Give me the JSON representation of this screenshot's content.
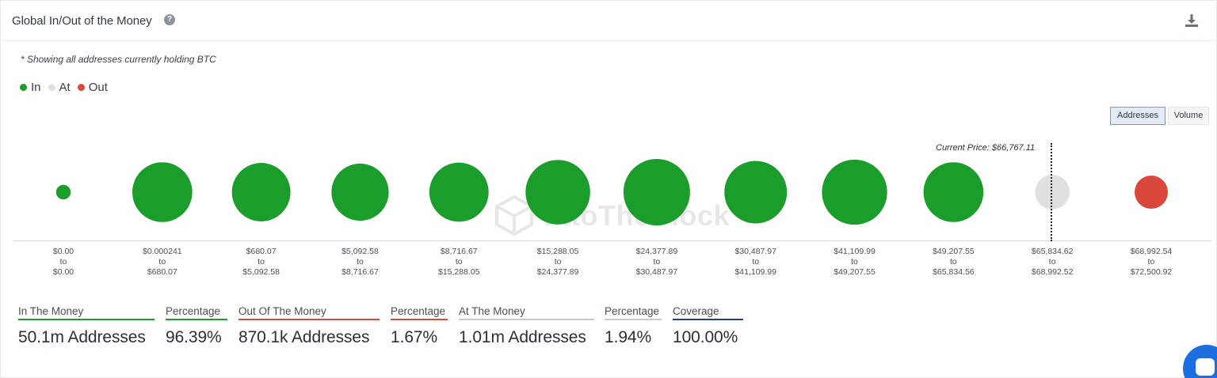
{
  "header": {
    "title": "Global In/Out of the Money",
    "help_icon": "question-circle-icon",
    "download_icon": "download-icon"
  },
  "note": "* Showing all addresses currently holding BTC",
  "legend": [
    {
      "label": "In",
      "color": "#1a9d2a"
    },
    {
      "label": "At",
      "color": "#e0e0e0"
    },
    {
      "label": "Out",
      "color": "#d9483b"
    }
  ],
  "toggles": {
    "addresses": "Addresses",
    "volume": "Volume",
    "selected": "Addresses"
  },
  "watermark": "IntoTheBlock",
  "current_price": {
    "label": "Current Price: $66,767.11"
  },
  "chart_data": {
    "type": "bubble",
    "legend_position": "top-left",
    "metric": "Addresses",
    "current_price": 66767.11,
    "buckets": [
      {
        "from": "$0.00",
        "to": "$0.00",
        "status": "In",
        "relative_size": 0.22
      },
      {
        "from": "$0.000241",
        "to": "$680.07",
        "status": "In",
        "relative_size": 0.9
      },
      {
        "from": "$680.07",
        "to": "$5,092.58",
        "status": "In",
        "relative_size": 0.88
      },
      {
        "from": "$5,092.58",
        "to": "$8,716.67",
        "status": "In",
        "relative_size": 0.86
      },
      {
        "from": "$8,716.67",
        "to": "$15,288.05",
        "status": "In",
        "relative_size": 0.89
      },
      {
        "from": "$15,288.05",
        "to": "$24,377.89",
        "status": "In",
        "relative_size": 0.97
      },
      {
        "from": "$24,377.89",
        "to": "$30,487.97",
        "status": "In",
        "relative_size": 1.0
      },
      {
        "from": "$30,487.97",
        "to": "$41,109.99",
        "status": "In",
        "relative_size": 0.94
      },
      {
        "from": "$41,109.99",
        "to": "$49,207.55",
        "status": "In",
        "relative_size": 0.98
      },
      {
        "from": "$49,207.55",
        "to": "$65,834.56",
        "status": "In",
        "relative_size": 0.9
      },
      {
        "from": "$65,834.62",
        "to": "$68,992.52",
        "status": "At",
        "relative_size": 0.52
      },
      {
        "from": "$68,992.54",
        "to": "$72,500.92",
        "status": "Out",
        "relative_size": 0.5
      }
    ],
    "connector": "to"
  },
  "stats": [
    {
      "label": "In The Money",
      "value": "50.1m Addresses",
      "color": "#1a9d2a"
    },
    {
      "label": "Percentage",
      "value": "96.39%",
      "color": "#1a9d2a"
    },
    {
      "label": "Out Of The Money",
      "value": "870.1k Addresses",
      "color": "#d9483b"
    },
    {
      "label": "Percentage",
      "value": "1.67%",
      "color": "#d9483b"
    },
    {
      "label": "At The Money",
      "value": "1.01m Addresses",
      "color": "#c8c8c8"
    },
    {
      "label": "Percentage",
      "value": "1.94%",
      "color": "#c8c8c8"
    },
    {
      "label": "Coverage",
      "value": "100.00%",
      "color": "#1f3f8f"
    }
  ],
  "chat_icon": "chat-bubble-icon"
}
